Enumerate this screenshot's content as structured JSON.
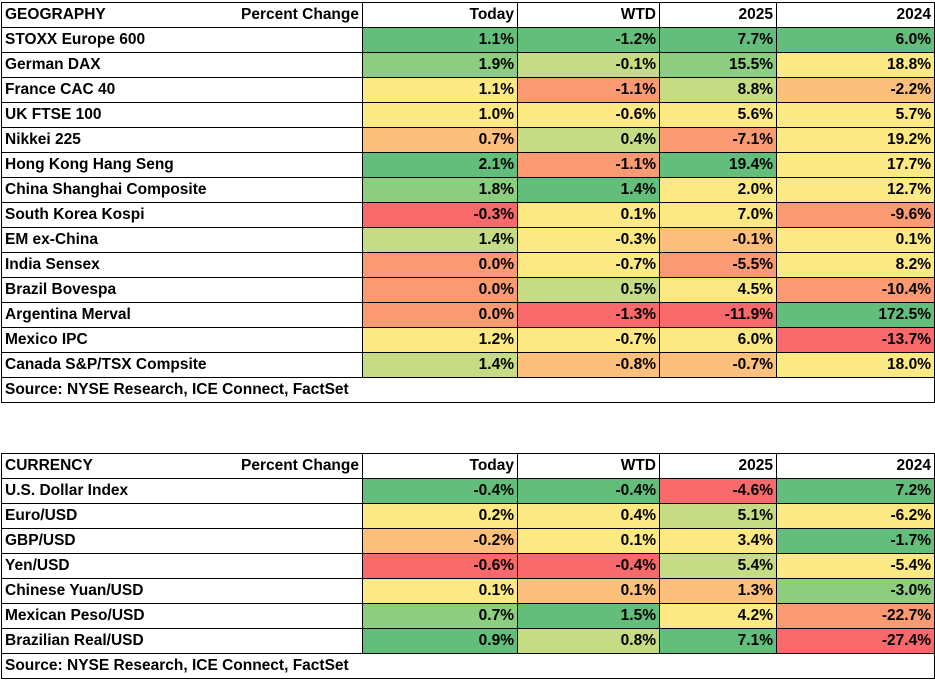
{
  "colors": {
    "deep_green": "#63be7b",
    "green": "#8ccd7f",
    "light_green": "#c6dc84",
    "yellow": "#fde984",
    "light_orange": "#fdc07c",
    "orange": "#fa9a73",
    "red": "#f8696b"
  },
  "geography": {
    "header": {
      "label": "GEOGRAPHY",
      "sub": "Percent Change",
      "cols": [
        "Today",
        "WTD",
        "2025",
        "2024"
      ]
    },
    "rows": [
      {
        "name": "STOXX Europe 600",
        "values": [
          "1.1%",
          "-1.2%",
          "7.7%",
          "6.0%"
        ],
        "colors": [
          "#63be7b",
          "#63be7b",
          "#63be7b",
          "#63be7b"
        ]
      },
      {
        "name": "German DAX",
        "values": [
          "1.9%",
          "-0.1%",
          "15.5%",
          "18.8%"
        ],
        "colors": [
          "#8ccd7f",
          "#c6dc84",
          "#8ccd7f",
          "#fde984"
        ]
      },
      {
        "name": "France CAC 40",
        "values": [
          "1.1%",
          "-1.1%",
          "8.8%",
          "-2.2%"
        ],
        "colors": [
          "#fde984",
          "#fa9a73",
          "#c6dc84",
          "#fdc07c"
        ]
      },
      {
        "name": "UK FTSE 100",
        "values": [
          "1.0%",
          "-0.6%",
          "5.6%",
          "5.7%"
        ],
        "colors": [
          "#fde984",
          "#fde984",
          "#fde984",
          "#fde984"
        ]
      },
      {
        "name": "Nikkei 225",
        "values": [
          "0.7%",
          "0.4%",
          "-7.1%",
          "19.2%"
        ],
        "colors": [
          "#fdc07c",
          "#c6dc84",
          "#fa9a73",
          "#fde984"
        ]
      },
      {
        "name": "Hong Kong Hang Seng",
        "values": [
          "2.1%",
          "-1.1%",
          "19.4%",
          "17.7%"
        ],
        "colors": [
          "#63be7b",
          "#fa9a73",
          "#63be7b",
          "#fde984"
        ]
      },
      {
        "name": "China Shanghai Composite",
        "values": [
          "1.8%",
          "1.4%",
          "2.0%",
          "12.7%"
        ],
        "colors": [
          "#8ccd7f",
          "#63be7b",
          "#fde984",
          "#fde984"
        ]
      },
      {
        "name": "South Korea Kospi",
        "values": [
          "-0.3%",
          "0.1%",
          "7.0%",
          "-9.6%"
        ],
        "colors": [
          "#f8696b",
          "#fde984",
          "#fde984",
          "#fa9a73"
        ]
      },
      {
        "name": "EM ex-China",
        "values": [
          "1.4%",
          "-0.3%",
          "-0.1%",
          "0.1%"
        ],
        "colors": [
          "#c6dc84",
          "#fde984",
          "#fdc07c",
          "#fde984"
        ]
      },
      {
        "name": "India Sensex",
        "values": [
          "0.0%",
          "-0.7%",
          "-5.5%",
          "8.2%"
        ],
        "colors": [
          "#fa9a73",
          "#fde984",
          "#fa9a73",
          "#fde984"
        ]
      },
      {
        "name": "Brazil Bovespa",
        "values": [
          "0.0%",
          "0.5%",
          "4.5%",
          "-10.4%"
        ],
        "colors": [
          "#fa9a73",
          "#c6dc84",
          "#fde984",
          "#fa9a73"
        ]
      },
      {
        "name": "Argentina Merval",
        "values": [
          "0.0%",
          "-1.3%",
          "-11.9%",
          "172.5%"
        ],
        "colors": [
          "#fa9a73",
          "#f8696b",
          "#f8696b",
          "#63be7b"
        ]
      },
      {
        "name": "Mexico IPC",
        "values": [
          "1.2%",
          "-0.7%",
          "6.0%",
          "-13.7%"
        ],
        "colors": [
          "#fde984",
          "#fde984",
          "#fde984",
          "#f8696b"
        ]
      },
      {
        "name": "Canada S&P/TSX Compsite",
        "values": [
          "1.4%",
          "-0.8%",
          "-0.7%",
          "18.0%"
        ],
        "colors": [
          "#c6dc84",
          "#fdc07c",
          "#fdc07c",
          "#fde984"
        ]
      }
    ],
    "source": "Source: NYSE Research, ICE Connect, FactSet"
  },
  "currency": {
    "header": {
      "label": "CURRENCY",
      "sub": "Percent Change",
      "cols": [
        "Today",
        "WTD",
        "2025",
        "2024"
      ]
    },
    "rows": [
      {
        "name": "U.S. Dollar Index",
        "values": [
          "-0.4%",
          "-0.4%",
          "-4.6%",
          "7.2%"
        ],
        "colors": [
          "#63be7b",
          "#63be7b",
          "#f8696b",
          "#63be7b"
        ]
      },
      {
        "name": "Euro/USD",
        "values": [
          "0.2%",
          "0.4%",
          "5.1%",
          "-6.2%"
        ],
        "colors": [
          "#fde984",
          "#fde984",
          "#c6dc84",
          "#fde984"
        ]
      },
      {
        "name": "GBP/USD",
        "values": [
          "-0.2%",
          "0.1%",
          "3.4%",
          "-1.7%"
        ],
        "colors": [
          "#fdc07c",
          "#fde984",
          "#fde984",
          "#63be7b"
        ]
      },
      {
        "name": "Yen/USD",
        "values": [
          "-0.6%",
          "-0.4%",
          "5.4%",
          "-5.4%"
        ],
        "colors": [
          "#f8696b",
          "#f8696b",
          "#c6dc84",
          "#fde984"
        ]
      },
      {
        "name": "Chinese Yuan/USD",
        "values": [
          "0.1%",
          "0.1%",
          "1.3%",
          "-3.0%"
        ],
        "colors": [
          "#fde984",
          "#fdc07c",
          "#fdc07c",
          "#8ccd7f"
        ]
      },
      {
        "name": "Mexican Peso/USD",
        "values": [
          "0.7%",
          "1.5%",
          "4.2%",
          "-22.7%"
        ],
        "colors": [
          "#8ccd7f",
          "#63be7b",
          "#fde984",
          "#fa9a73"
        ]
      },
      {
        "name": "Brazilian Real/USD",
        "values": [
          "0.9%",
          "0.8%",
          "7.1%",
          "-27.4%"
        ],
        "colors": [
          "#63be7b",
          "#c6dc84",
          "#63be7b",
          "#f8696b"
        ]
      }
    ],
    "source": "Source: NYSE Research, ICE Connect, FactSet"
  }
}
